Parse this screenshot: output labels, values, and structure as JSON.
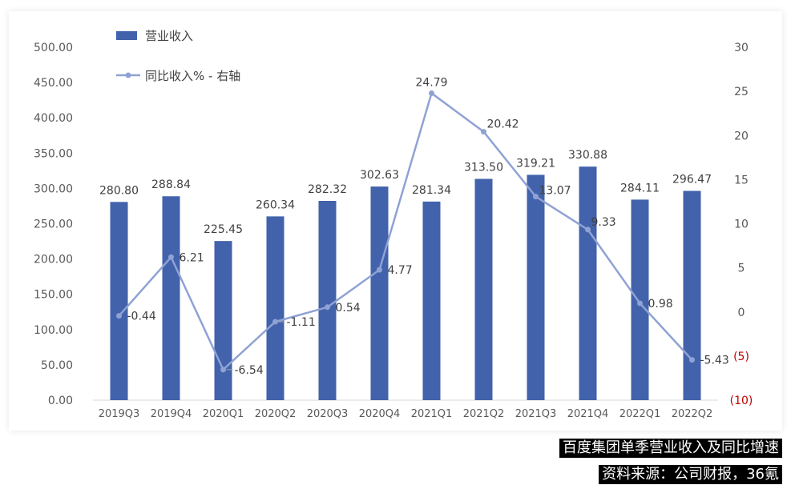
{
  "chart_data": {
    "type": "bar+line",
    "categories": [
      "2019Q3",
      "2019Q4",
      "2020Q1",
      "2020Q2",
      "2020Q3",
      "2020Q4",
      "2021Q1",
      "2021Q2",
      "2021Q3",
      "2021Q4",
      "2022Q1",
      "2022Q2"
    ],
    "series": [
      {
        "name": "营业收入",
        "kind": "bar",
        "axis": "left",
        "color": "#4262AB",
        "values": [
          280.8,
          288.84,
          225.45,
          260.34,
          282.32,
          302.63,
          281.34,
          313.5,
          319.21,
          330.88,
          284.11,
          296.47
        ],
        "labels": [
          "280.80",
          "288.84",
          "225.45",
          "260.34",
          "282.32",
          "302.63",
          "281.34",
          "313.50",
          "319.21",
          "330.88",
          "284.11",
          "296.47"
        ]
      },
      {
        "name": "同比收入% - 右轴",
        "kind": "line",
        "axis": "right",
        "color": "#8FA2D4",
        "values": [
          -0.44,
          6.21,
          -6.54,
          -1.11,
          0.54,
          4.77,
          24.79,
          20.42,
          13.07,
          9.33,
          0.98,
          -5.43
        ],
        "labels": [
          "-0.44",
          "6.21",
          "-6.54",
          "-1.11",
          "0.54",
          "4.77",
          "24.79",
          "20.42",
          "13.07",
          "9.33",
          "0.98",
          "-5.43"
        ]
      }
    ],
    "left_axis": {
      "ylim": [
        0,
        500
      ],
      "ticks": [
        0,
        50,
        100,
        150,
        200,
        250,
        300,
        350,
        400,
        450,
        500
      ],
      "tick_labels": [
        "0.00",
        "50.00",
        "100.00",
        "150.00",
        "200.00",
        "250.00",
        "300.00",
        "350.00",
        "400.00",
        "450.00",
        "500.00"
      ]
    },
    "right_axis": {
      "ylim": [
        -10,
        30
      ],
      "ticks": [
        -10,
        -5,
        0,
        5,
        10,
        15,
        20,
        25,
        30
      ],
      "tick_labels": [
        "(10)",
        "(5)",
        "0",
        "5",
        "10",
        "15",
        "20",
        "25",
        "30"
      ],
      "negative_label_color": "#C00000"
    },
    "grid": false,
    "legend_position": "top-left",
    "title": "",
    "xlabel": "",
    "ylabel": ""
  },
  "captions": {
    "title": "百度集团单季营业收入及同比增速",
    "source": "资料来源：公司财报，36氪"
  }
}
